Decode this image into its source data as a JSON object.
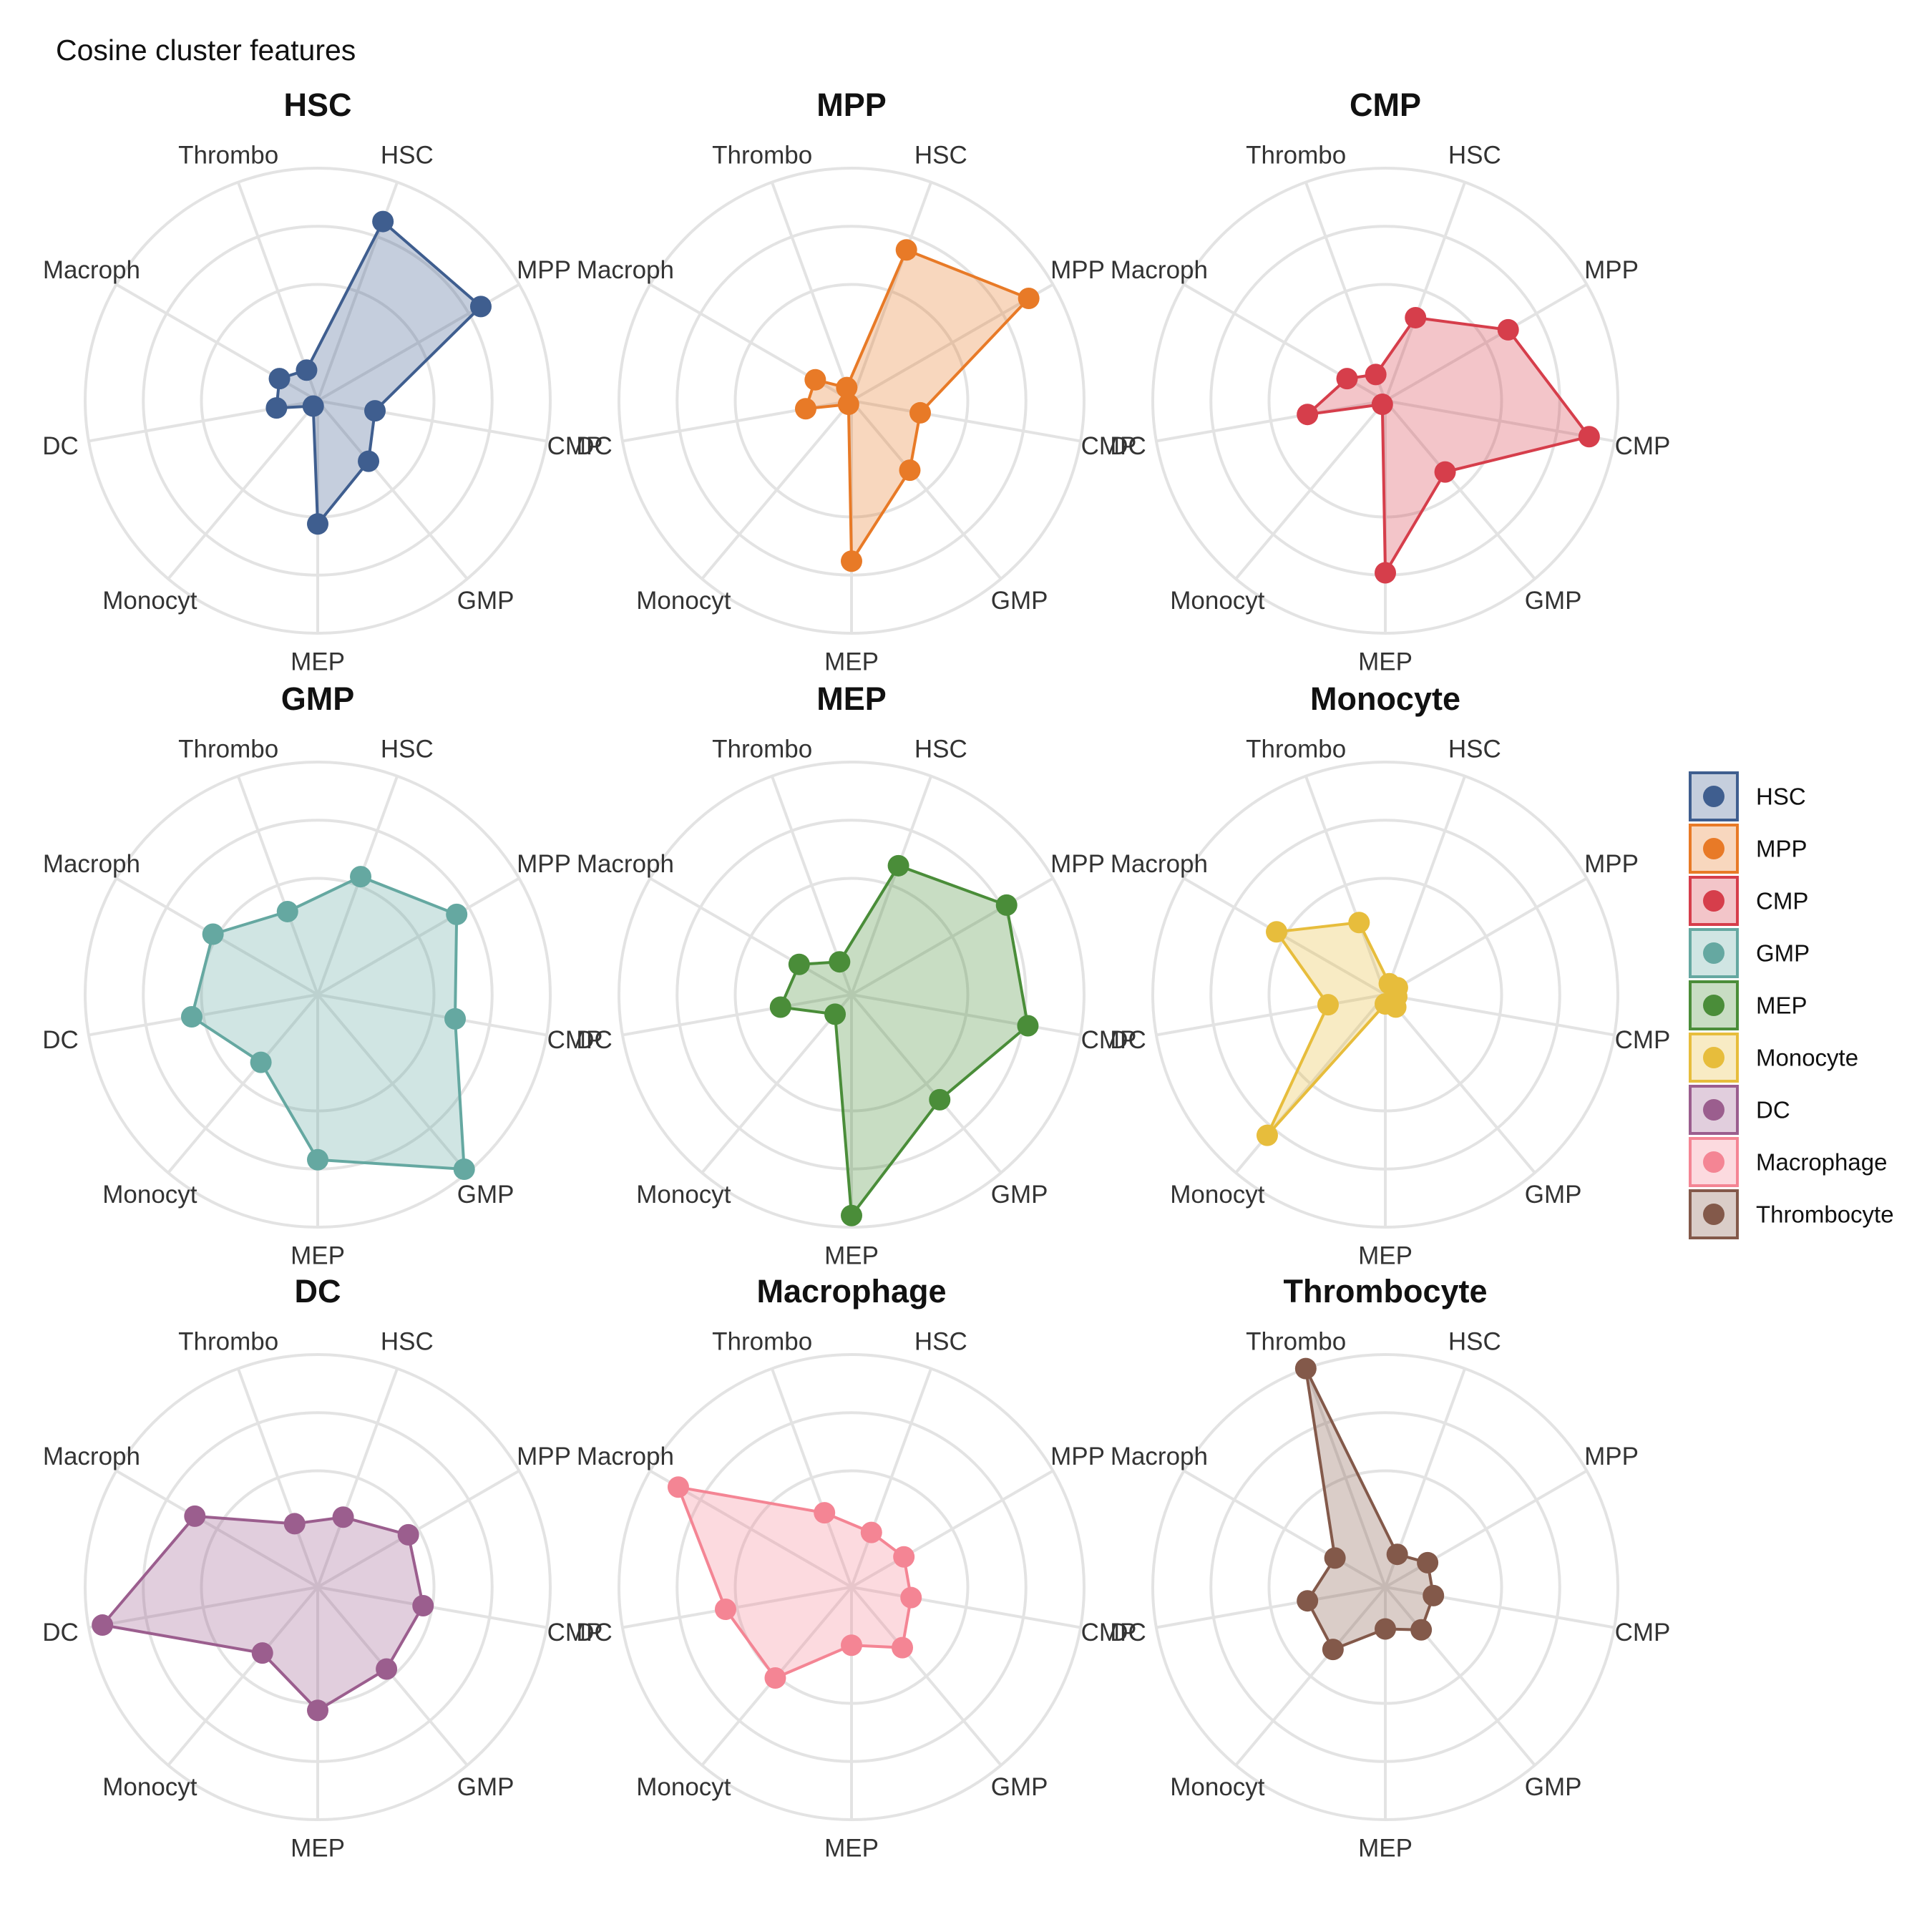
{
  "figure_title": "Cosine cluster features",
  "chart_data": {
    "type": "radar",
    "title": "Cosine cluster features",
    "axes": [
      "HSC",
      "MPP",
      "CMP",
      "GMP",
      "MEP",
      "Monocyt",
      "DC",
      "Macroph",
      "Thrombo"
    ],
    "rlim": [
      0,
      1
    ],
    "grid": true,
    "legend_position": "right",
    "legend": [
      "HSC",
      "MPP",
      "CMP",
      "GMP",
      "MEP",
      "Monocyte",
      "DC",
      "Macrophage",
      "Thrombocyte"
    ],
    "series": [
      {
        "name": "HSC",
        "color": "#3f5e8f",
        "values": [
          0.82,
          0.81,
          0.25,
          0.34,
          0.53,
          0.03,
          0.18,
          0.19,
          0.14
        ]
      },
      {
        "name": "MPP",
        "color": "#e87a27",
        "values": [
          0.69,
          0.88,
          0.3,
          0.39,
          0.69,
          0.02,
          0.2,
          0.18,
          0.06
        ]
      },
      {
        "name": "CMP",
        "color": "#d63e4b",
        "values": [
          0.38,
          0.61,
          0.89,
          0.4,
          0.74,
          0.02,
          0.34,
          0.19,
          0.12
        ]
      },
      {
        "name": "GMP",
        "color": "#65a8a1",
        "values": [
          0.54,
          0.69,
          0.6,
          0.98,
          0.71,
          0.38,
          0.55,
          0.52,
          0.38
        ]
      },
      {
        "name": "MEP",
        "color": "#4a8d39",
        "values": [
          0.59,
          0.77,
          0.77,
          0.59,
          0.95,
          0.11,
          0.31,
          0.26,
          0.15
        ]
      },
      {
        "name": "Monocyte",
        "color": "#e7bd3c",
        "values": [
          0.05,
          0.06,
          0.05,
          0.07,
          0.04,
          0.79,
          0.25,
          0.54,
          0.33
        ]
      },
      {
        "name": "DC",
        "color": "#9b5e8e",
        "values": [
          0.32,
          0.45,
          0.46,
          0.46,
          0.53,
          0.37,
          0.94,
          0.61,
          0.29
        ]
      },
      {
        "name": "Macrophage",
        "color": "#f48594",
        "values": [
          0.25,
          0.26,
          0.26,
          0.34,
          0.25,
          0.51,
          0.55,
          0.86,
          0.34
        ]
      },
      {
        "name": "Thrombocyte",
        "color": "#83594a",
        "values": [
          0.15,
          0.21,
          0.21,
          0.24,
          0.18,
          0.35,
          0.34,
          0.25,
          1.0
        ]
      }
    ]
  }
}
